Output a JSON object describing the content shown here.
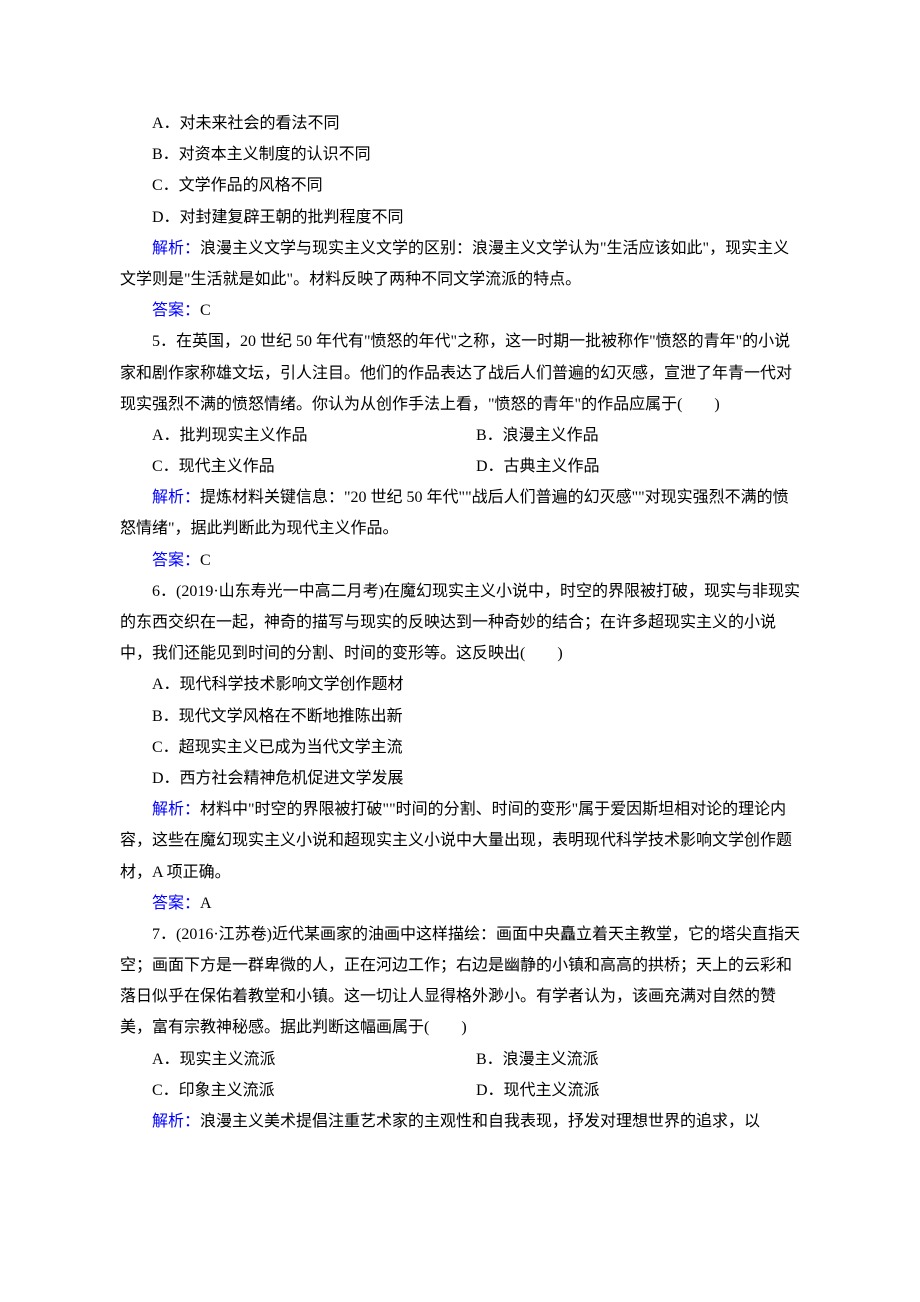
{
  "q4": {
    "optA": "A．对未来社会的看法不同",
    "optB": "B．对资本主义制度的认识不同",
    "optC": "C．文学作品的风格不同",
    "optD": "D．对封建复辟王朝的批判程度不同",
    "analysisLabel": "解析：",
    "analysis": "浪漫主义文学与现实主义文学的区别：浪漫主义文学认为\"生活应该如此\"，现实主义文学则是\"生活就是如此\"。材料反映了两种不同文学流派的特点。",
    "answerLabel": "答案：",
    "answer": "C"
  },
  "q5": {
    "stem": "5．在英国，20 世纪 50 年代有\"愤怒的年代\"之称，这一时期一批被称作\"愤怒的青年\"的小说家和剧作家称雄文坛，引人注目。他们的作品表达了战后人们普遍的幻灭感，宣泄了年青一代对现实强烈不满的愤怒情绪。你认为从创作手法上看，\"愤怒的青年\"的作品应属于(　　)",
    "optA": "A．批判现实主义作品",
    "optB": "B．浪漫主义作品",
    "optC": "C．现代主义作品",
    "optD": "D．古典主义作品",
    "analysisLabel": "解析：",
    "analysis": "提炼材料关键信息：\"20 世纪 50 年代\"\"战后人们普遍的幻灭感\"\"对现实强烈不满的愤怒情绪\"，据此判断此为现代主义作品。",
    "answerLabel": "答案：",
    "answer": "C"
  },
  "q6": {
    "stem": "6．(2019·山东寿光一中高二月考)在魔幻现实主义小说中，时空的界限被打破，现实与非现实的东西交织在一起，神奇的描写与现实的反映达到一种奇妙的结合；在许多超现实主义的小说中，我们还能见到时间的分割、时间的变形等。这反映出(　　)",
    "optA": "A．现代科学技术影响文学创作题材",
    "optB": "B．现代文学风格在不断地推陈出新",
    "optC": "C．超现实主义已成为当代文学主流",
    "optD": "D．西方社会精神危机促进文学发展",
    "analysisLabel": "解析：",
    "analysis": "材料中\"时空的界限被打破\"\"时间的分割、时间的变形\"属于爱因斯坦相对论的理论内容，这些在魔幻现实主义小说和超现实主义小说中大量出现，表明现代科学技术影响文学创作题材，A 项正确。",
    "answerLabel": "答案：",
    "answer": "A"
  },
  "q7": {
    "stem": "7．(2016·江苏卷)近代某画家的油画中这样描绘：画面中央矗立着天主教堂，它的塔尖直指天空；画面下方是一群卑微的人，正在河边工作；右边是幽静的小镇和高高的拱桥；天上的云彩和落日似乎在保佑着教堂和小镇。这一切让人显得格外渺小。有学者认为，该画充满对自然的赞美，富有宗教神秘感。据此判断这幅画属于(　　)",
    "optA": "A．现实主义流派",
    "optB": "B．浪漫主义流派",
    "optC": "C．印象主义流派",
    "optD": "D．现代主义流派",
    "analysisLabel": "解析：",
    "analysis": "浪漫主义美术提倡注重艺术家的主观性和自我表现，抒发对理想世界的追求，以"
  }
}
